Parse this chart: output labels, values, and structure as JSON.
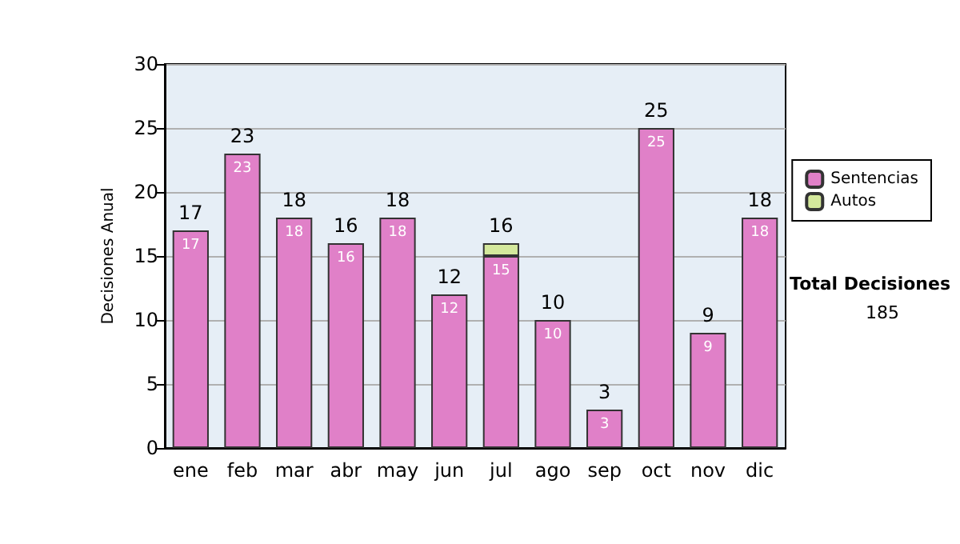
{
  "chart_data": {
    "type": "bar",
    "ylabel": "Decisiones Anual",
    "categories": [
      "ene",
      "feb",
      "mar",
      "abr",
      "may",
      "jun",
      "jul",
      "ago",
      "sep",
      "oct",
      "nov",
      "dic"
    ],
    "series": [
      {
        "name": "Sentencias",
        "color": "#e080c8",
        "values": [
          17,
          23,
          18,
          16,
          18,
          12,
          15,
          10,
          3,
          25,
          9,
          18
        ],
        "value_labels": [
          "17",
          "23",
          "18",
          "16",
          "18",
          "12",
          "15",
          "10",
          "3",
          "25",
          "9",
          "18"
        ]
      },
      {
        "name": "Autos",
        "color": "#d4e89c",
        "values": [
          null,
          null,
          null,
          null,
          null,
          null,
          1,
          null,
          null,
          null,
          null,
          null
        ]
      }
    ],
    "stacked": true,
    "totals": [
      "17",
      "23",
      "18",
      "16",
      "18",
      "12",
      "16",
      "10",
      "3",
      "25",
      "9",
      "18"
    ],
    "ylim": [
      0,
      30
    ],
    "yticks": [
      0,
      5,
      10,
      15,
      20,
      25,
      30
    ],
    "grid": "y",
    "legend": "right",
    "annotations": [
      "Total Decisiones",
      "185"
    ]
  }
}
